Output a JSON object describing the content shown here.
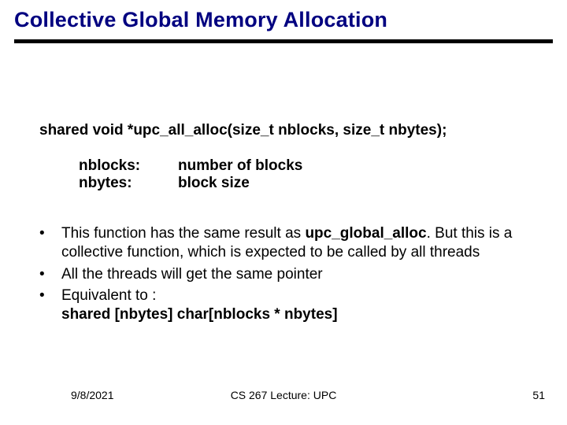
{
  "title": "Collective Global Memory Allocation",
  "signature": "shared void *upc_all_alloc(size_t nblocks, size_t nbytes);",
  "params": [
    {
      "name": "nblocks:",
      "desc": "number of blocks"
    },
    {
      "name": "nbytes:",
      "desc": "block size"
    }
  ],
  "bullets": {
    "b1_pre": "This function has the same result as ",
    "b1_bold": "upc_global_alloc",
    "b1_post": ". But this is a collective function, which is expected to be called by all threads",
    "b2": "All the threads will get the same pointer",
    "b3_line1": "Equivalent to :",
    "b3_line2": "shared [nbytes] char[nblocks * nbytes]"
  },
  "footer": {
    "date": "9/8/2021",
    "center": "CS 267 Lecture: UPC",
    "page": "51"
  },
  "colors": {
    "title": "#000080",
    "text": "#000000",
    "underline": "#000000",
    "background": "#ffffff"
  }
}
